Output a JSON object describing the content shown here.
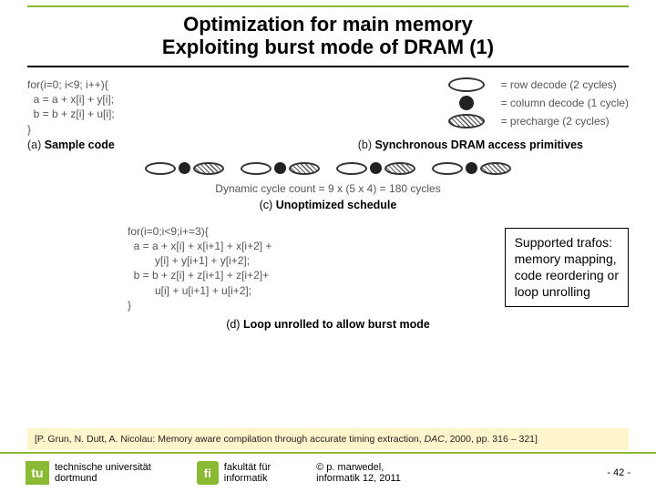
{
  "title": {
    "line1": "Optimization for main memory",
    "line2": "Exploiting burst mode of DRAM  (1)"
  },
  "section_a": {
    "code": "for(i=0; i<9; i++){\n  a = a + x[i] + y[i];\n  b = b + z[i] + u[i];\n}",
    "caption_prefix": "(a) ",
    "caption_bold": "Sample code"
  },
  "section_b": {
    "legend": [
      {
        "kind": "empty-ellipse",
        "label": "= row decode (2 cycles)"
      },
      {
        "kind": "filled-dot",
        "label": "= column decode (1 cycle)"
      },
      {
        "kind": "hatched-ellipse",
        "label": "= precharge (2 cycles)"
      }
    ],
    "caption_prefix": "(b) ",
    "caption_bold": "Synchronous DRAM access primitives"
  },
  "section_c": {
    "sequences": 4,
    "sequence_pattern": [
      "empty",
      "dot",
      "hatched"
    ],
    "cycle_text": "Dynamic cycle count = 9 x (5 x 4) = 180 cycles",
    "caption_prefix": "(c) ",
    "caption_bold": "Unoptimized schedule"
  },
  "section_d": {
    "code": "for(i=0;i<9;i+=3){\n  a = a + x[i] + x[i+1] + x[i+2] +\n         y[i] + y[i+1] + y[i+2];\n  b = b + z[i] + z[i+1] + z[i+2]+\n         u[i] + u[i+1] + u[i+2];\n}",
    "caption_prefix": "(d) ",
    "caption_bold": "Loop unrolled to allow burst mode"
  },
  "trafos": {
    "line1": "Supported trafos:",
    "line2": "memory mapping,",
    "line3": "code reordering or",
    "line4": "loop unrolling"
  },
  "citation": {
    "pre": "[P. Grun, N. Dutt, A. Nicolau: Memory aware compilation through accurate timing extraction, ",
    "ital": "DAC",
    "post": ", 2000, pp. 316 – 321]"
  },
  "footer": {
    "tu_mark": "tu",
    "uni_line1": "technische universität",
    "uni_line2": "dortmund",
    "fi_mark": "fi",
    "fak_line1": "fakultät für",
    "fak_line2": "informatik",
    "copy_line1": "©  p. marwedel,",
    "copy_line2": "informatik 12,  2011",
    "page": "-  42 -"
  },
  "colors": {
    "accent": "#8ab933",
    "citation_bg": "#fff5cc"
  }
}
